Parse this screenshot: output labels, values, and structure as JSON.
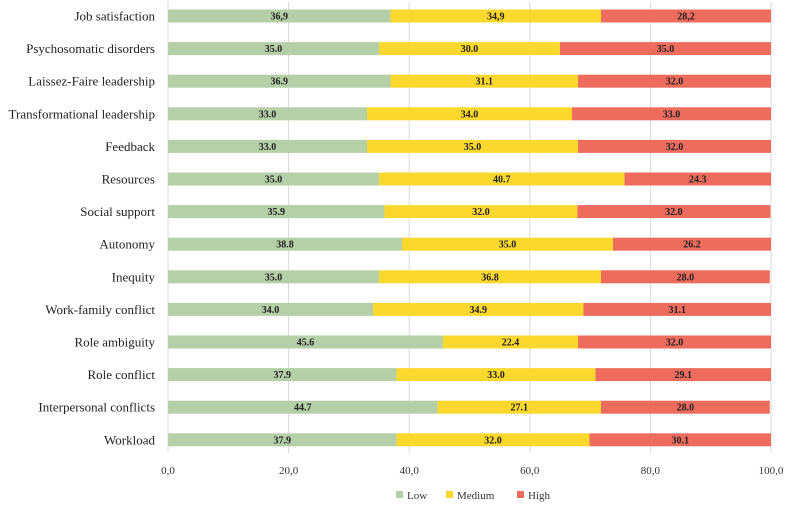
{
  "chart_data": {
    "type": "bar",
    "orientation": "horizontal",
    "stacked": true,
    "categories": [
      "Job satisfaction",
      "Psychosomatic disorders",
      "Laissez-Faire leadership",
      "Transformational leadership",
      "Feedback",
      "Resources",
      "Social support",
      "Autonomy",
      "Inequity",
      "Work-family conflict",
      "Role ambiguity",
      "Role conflict",
      "Interpersonal conflicts",
      "Workload"
    ],
    "series": [
      {
        "name": "Low",
        "color": "#b5cfa8",
        "values": [
          36.9,
          35.0,
          36.9,
          33.0,
          33.0,
          35.0,
          35.9,
          38.8,
          35.0,
          34.0,
          45.6,
          37.9,
          44.7,
          37.9
        ],
        "labels": [
          "36,9",
          "35.0",
          "36.9",
          "33.0",
          "33.0",
          "35.0",
          "35.9",
          "38.8",
          "35.0",
          "34.0",
          "45.6",
          "37.9",
          "44.7",
          "37.9"
        ]
      },
      {
        "name": "Medium",
        "color": "#fbd82e",
        "values": [
          34.9,
          30.0,
          31.1,
          34.0,
          35.0,
          40.7,
          32.0,
          35.0,
          36.8,
          34.9,
          22.4,
          33.0,
          27.1,
          32.0
        ],
        "labels": [
          "34,9",
          "30.0",
          "31.1",
          "34.0",
          "35.0",
          "40.7",
          "32.0",
          "35.0",
          "36.8",
          "34.9",
          "22.4",
          "33.0",
          "27.1",
          "32.0"
        ]
      },
      {
        "name": "High",
        "color": "#ee6c5d",
        "values": [
          28.2,
          35.0,
          32.0,
          33.0,
          32.0,
          24.3,
          32.0,
          26.2,
          28.0,
          31.1,
          32.0,
          29.1,
          28.0,
          30.1
        ],
        "labels": [
          "28,2",
          "35.0",
          "32.0",
          "33.0",
          "32.0",
          "24.3",
          "32.0",
          "26.2",
          "28.0",
          "31.1",
          "32.0",
          "29.1",
          "28.0",
          "30.1"
        ]
      }
    ],
    "xlim": [
      0,
      100
    ],
    "xticks": [
      0,
      20,
      40,
      60,
      80,
      100
    ],
    "xtick_labels": [
      "0,0",
      "20,0",
      "40,0",
      "60,0",
      "80,0",
      "100,0"
    ],
    "legend": {
      "position": "bottom",
      "entries": [
        "Low",
        "Medium",
        "High"
      ]
    },
    "grid": true
  }
}
